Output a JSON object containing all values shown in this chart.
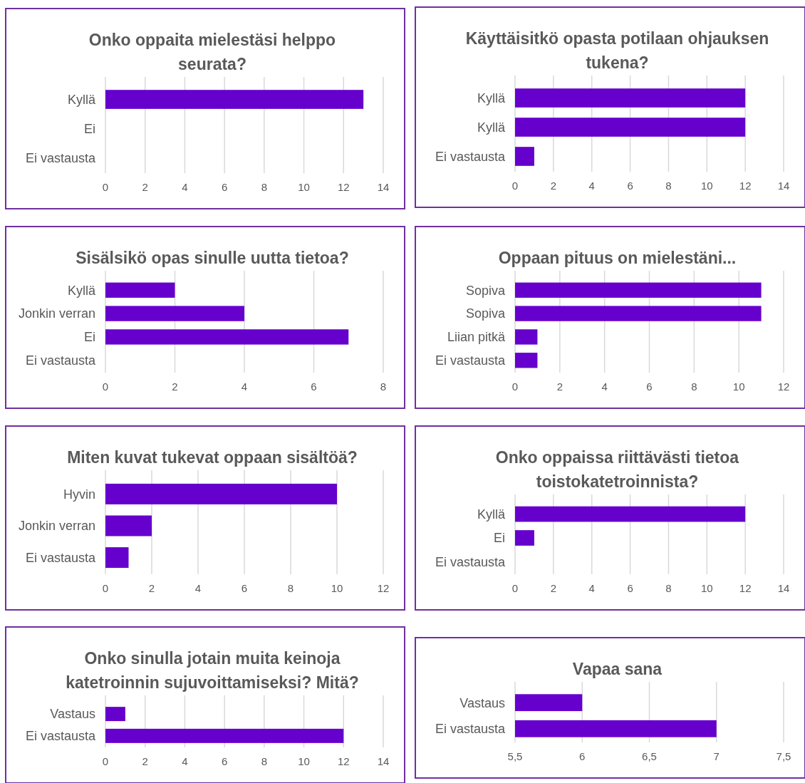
{
  "chart_data": [
    {
      "type": "bar",
      "orientation": "horizontal",
      "title": "Onko oppaita mielestäsi helppo seurata?",
      "categories": [
        "Kyllä",
        "Ei",
        "Ei vastausta"
      ],
      "values": [
        13,
        0,
        0
      ],
      "color": "#6600cc",
      "xlim": [
        0,
        14
      ],
      "xticks": [
        0,
        2,
        4,
        6,
        8,
        10,
        12,
        14
      ],
      "grid": "x"
    },
    {
      "type": "bar",
      "orientation": "horizontal",
      "title": "Käyttäisitkö opasta potilaan ohjauksen tukena?",
      "categories": [
        "Kyllä",
        "Kyllä",
        "Ei vastausta"
      ],
      "values": [
        12,
        12,
        1
      ],
      "color": "#6600cc",
      "xlim": [
        0,
        14
      ],
      "xticks": [
        0,
        2,
        4,
        6,
        8,
        10,
        12,
        14
      ],
      "grid": "x"
    },
    {
      "type": "bar",
      "orientation": "horizontal",
      "title": "Sisälsikö opas sinulle uutta tietoa?",
      "categories": [
        "Kyllä",
        "Jonkin verran",
        "Ei",
        "Ei vastausta"
      ],
      "values": [
        2,
        4,
        7,
        0
      ],
      "color": "#6600cc",
      "xlim": [
        0,
        8
      ],
      "xticks": [
        0,
        2,
        4,
        6,
        8
      ],
      "grid": "x"
    },
    {
      "type": "bar",
      "orientation": "horizontal",
      "title": "Oppaan pituus on mielestäni...",
      "categories": [
        "Sopiva",
        "Sopiva",
        "Liian pitkä",
        "Ei vastausta"
      ],
      "values": [
        11,
        11,
        1,
        1
      ],
      "color": "#6600cc",
      "xlim": [
        0,
        12
      ],
      "xticks": [
        0,
        2,
        4,
        6,
        8,
        10,
        12
      ],
      "grid": "x"
    },
    {
      "type": "bar",
      "orientation": "horizontal",
      "title": "Miten kuvat tukevat oppaan sisältöä?",
      "categories": [
        "Hyvin",
        "Jonkin verran",
        "Ei vastausta"
      ],
      "values": [
        10,
        2,
        1
      ],
      "color": "#6600cc",
      "xlim": [
        0,
        12
      ],
      "xticks": [
        0,
        2,
        4,
        6,
        8,
        10,
        12
      ],
      "grid": "x"
    },
    {
      "type": "bar",
      "orientation": "horizontal",
      "title": "Onko oppaissa riittävästi tietoa toistokatetroinnista?",
      "categories": [
        "Kyllä",
        "Ei",
        "Ei vastausta"
      ],
      "values": [
        12,
        1,
        0
      ],
      "color": "#6600cc",
      "xlim": [
        0,
        14
      ],
      "xticks": [
        0,
        2,
        4,
        6,
        8,
        10,
        12,
        14
      ],
      "grid": "x"
    },
    {
      "type": "bar",
      "orientation": "horizontal",
      "title": "Onko sinulla jotain muita keinoja katetroinnin sujuvoittamiseksi? Mitä?",
      "categories": [
        "Vastaus",
        "Ei vastausta"
      ],
      "values": [
        1,
        12
      ],
      "color": "#6600cc",
      "xlim": [
        0,
        14
      ],
      "xticks": [
        0,
        2,
        4,
        6,
        8,
        10,
        12,
        14
      ],
      "grid": "x"
    },
    {
      "type": "bar",
      "orientation": "horizontal",
      "title": "Vapaa sana",
      "categories": [
        "Vastaus",
        "Ei vastausta"
      ],
      "values": [
        6,
        7
      ],
      "color": "#6600cc",
      "xlim": [
        5.5,
        7.5
      ],
      "xticks": [
        {
          "value": 5.5,
          "label": "5,5"
        },
        6,
        {
          "value": 6.5,
          "label": "6,5"
        },
        7,
        {
          "value": 7.5,
          "label": "7,5"
        }
      ],
      "grid": "x"
    }
  ]
}
